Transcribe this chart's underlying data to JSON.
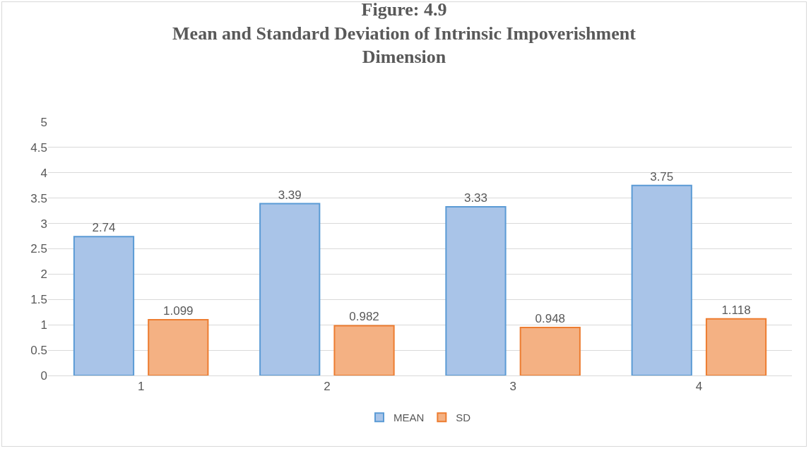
{
  "chart_data": {
    "type": "bar",
    "title": "Figure: 4.9\nMean and Standard Deviation of Intrinsic Impoverishment\nDimension",
    "categories": [
      "1",
      "2",
      "3",
      "4"
    ],
    "series": [
      {
        "name": "MEAN",
        "color": "#a9c4e8",
        "values": [
          2.74,
          3.39,
          3.33,
          3.75
        ]
      },
      {
        "name": "SD",
        "color": "#f4b183",
        "values": [
          1.099,
          0.982,
          0.948,
          1.118
        ]
      }
    ],
    "ylim": [
      0,
      5
    ],
    "yticks": [
      0,
      0.5,
      1,
      1.5,
      2,
      2.5,
      3,
      3.5,
      4,
      4.5,
      5
    ],
    "grid": "y",
    "legend": "bottom",
    "data_labels": true
  }
}
